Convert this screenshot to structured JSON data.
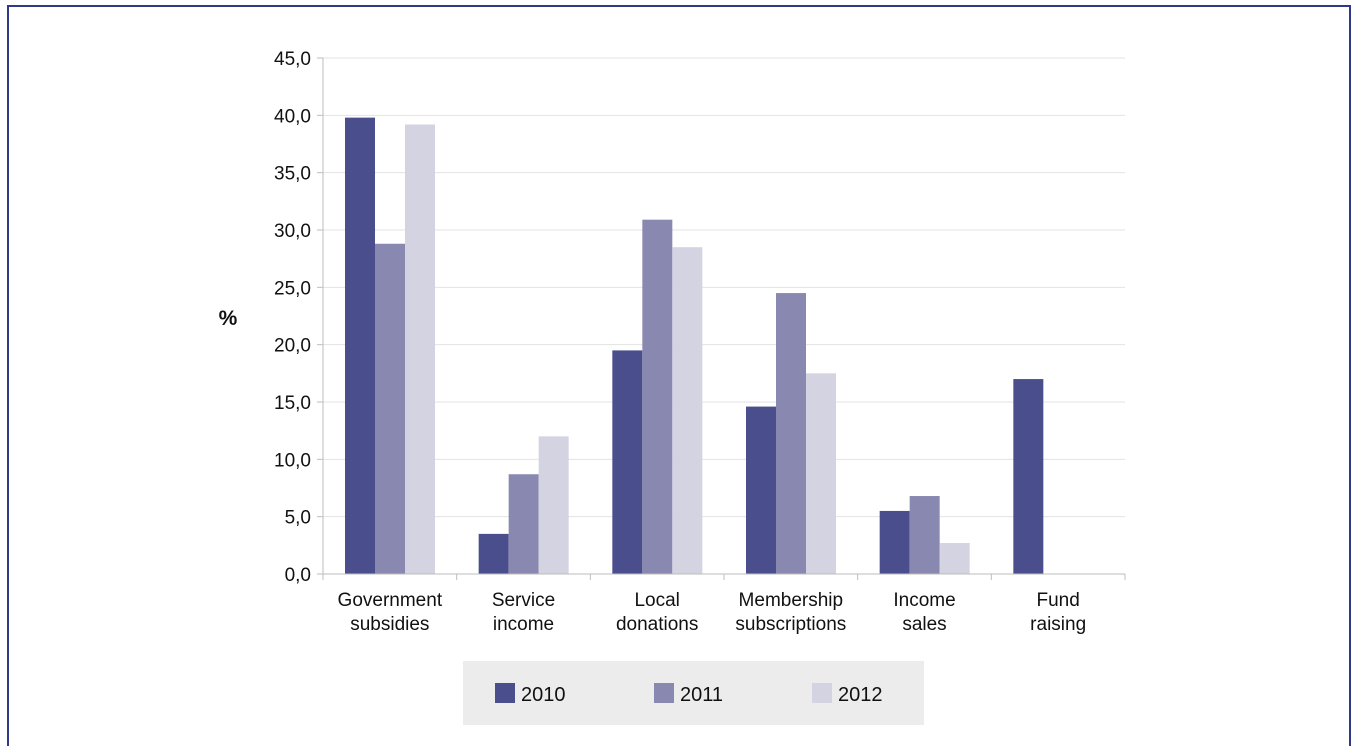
{
  "chart_data": {
    "type": "bar",
    "ylabel": "%",
    "ylim": [
      0,
      45
    ],
    "ytick_step": 5,
    "ytick_labels": [
      "0,0",
      "5,0",
      "10,0",
      "15,0",
      "20,0",
      "25,0",
      "30,0",
      "35,0",
      "40,0",
      "45,0"
    ],
    "grid": true,
    "legend_position": "bottom",
    "categories": [
      [
        "Government",
        "subsidies"
      ],
      [
        "Service",
        "income"
      ],
      [
        "Local",
        "donations"
      ],
      [
        "Membership",
        "subscriptions"
      ],
      [
        "Income",
        "sales"
      ],
      [
        "Fund",
        "raising"
      ]
    ],
    "series": [
      {
        "name": "2010",
        "color": "#4b4e8c",
        "values": [
          39.8,
          3.5,
          19.5,
          14.6,
          5.5,
          17.0
        ]
      },
      {
        "name": "2011",
        "color": "#8988b0",
        "values": [
          28.8,
          8.7,
          30.9,
          24.5,
          6.8,
          0
        ]
      },
      {
        "name": "2012",
        "color": "#d3d3e2",
        "values": [
          39.2,
          12.0,
          28.5,
          17.5,
          2.7,
          0
        ]
      }
    ]
  }
}
